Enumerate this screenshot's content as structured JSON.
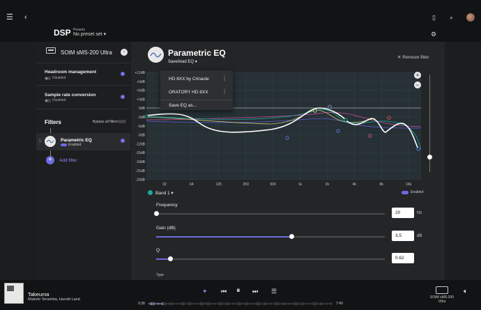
{
  "header": {
    "title": "DSP",
    "presets_label": "Presets",
    "preset_value": "No preset set",
    "icons": [
      "menu-icon",
      "back-icon",
      "bookmark-icon",
      "search-icon",
      "avatar",
      "settings-icon"
    ]
  },
  "sidebar": {
    "device_name": "SOtM sMS-200 Ultra",
    "items": [
      {
        "title": "Headroom management",
        "status": "Disabled"
      },
      {
        "title": "Sample rate conversion",
        "status": "Disabled"
      }
    ],
    "filters_title": "Filters",
    "bypass_label": "Bypass all filters",
    "filter": {
      "name": "Parametric EQ",
      "status": "Enabled"
    },
    "add_filter_label": "Add filter"
  },
  "main": {
    "title": "Parametric EQ",
    "saveload_label": "Save/load EQ",
    "remove_filter_label": "Remove filter",
    "menu_items": [
      "HD 8XX by Crinacle",
      "ORATORY HD 8XX",
      "Save EQ as..."
    ],
    "y_ticks": [
      "+12dB",
      "+9dB",
      "+6dB",
      "+3dB",
      "0dB",
      "-3dB",
      "-6dB",
      "-9dB",
      "-12dB",
      "-15dB",
      "-18dB",
      "-21dB",
      "-24dB"
    ],
    "x_ticks": [
      "32",
      "64",
      "125",
      "250",
      "500",
      "1k",
      "2k",
      "4k",
      "8k",
      "16k"
    ],
    "band_label": "Band 1",
    "enabled_label": "Enabled",
    "fields": {
      "frequency_label": "Frequency",
      "frequency_value": "20",
      "frequency_unit": "Hz",
      "gain_label": "Gain (dB)",
      "gain_value": "3.5",
      "gain_unit": "dB",
      "q_label": "Q",
      "q_value": "0.62",
      "type_label": "Type"
    },
    "slider_levels": {
      "frequency": 0.0,
      "gain": 0.59,
      "q": 0.06
    }
  },
  "player": {
    "track_title": "Takeuma",
    "track_artist": "Makoto Terashita, Harold Land",
    "time_elapsed": "0:38",
    "time_total": "7:49",
    "progress": 0.08,
    "output_name": "SOtM sMS-200 Ultra"
  },
  "colors": {
    "accent": "#6c6ce0",
    "band1": "#1ca8a0",
    "background": "#1c1d1f"
  }
}
